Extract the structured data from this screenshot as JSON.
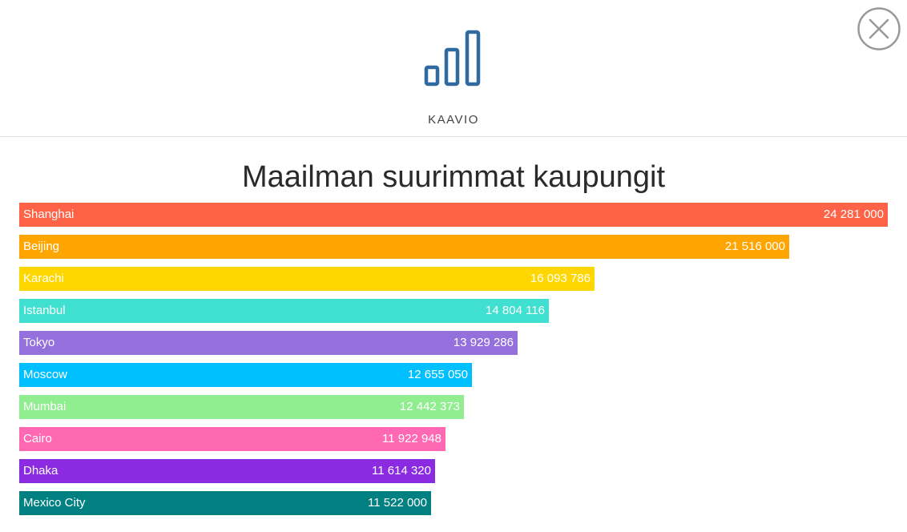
{
  "header": {
    "label": "KAAVIO",
    "icon": "bar-chart-icon",
    "icon_color": "#2f6aa0"
  },
  "close_button": {
    "icon": "close-icon",
    "color": "#999999"
  },
  "chart_data": {
    "type": "bar",
    "orientation": "horizontal",
    "title": "Maailman suurimmat kaupungit",
    "xlabel": "",
    "ylabel": "",
    "xlim": [
      0,
      24281000
    ],
    "grid": false,
    "categories": [
      "Shanghai",
      "Beijing",
      "Karachi",
      "Istanbul",
      "Tokyo",
      "Moscow",
      "Mumbai",
      "Cairo",
      "Dhaka",
      "Mexico City"
    ],
    "values": [
      24281000,
      21516000,
      16093786,
      14804116,
      13929286,
      12655050,
      12442373,
      11922948,
      11614320,
      11522000
    ],
    "value_labels": [
      "24 281 000",
      "21 516 000",
      "16 093 786",
      "14 804 116",
      "13 929 286",
      "12 655 050",
      "12 442 373",
      "11 922 948",
      "11 614 320",
      "11 522 000"
    ],
    "colors": [
      "#ff6347",
      "#ffa500",
      "#ffd700",
      "#40e0d0",
      "#9370db",
      "#00bfff",
      "#90ee90",
      "#ff69b4",
      "#8a2be2",
      "#008080"
    ]
  }
}
